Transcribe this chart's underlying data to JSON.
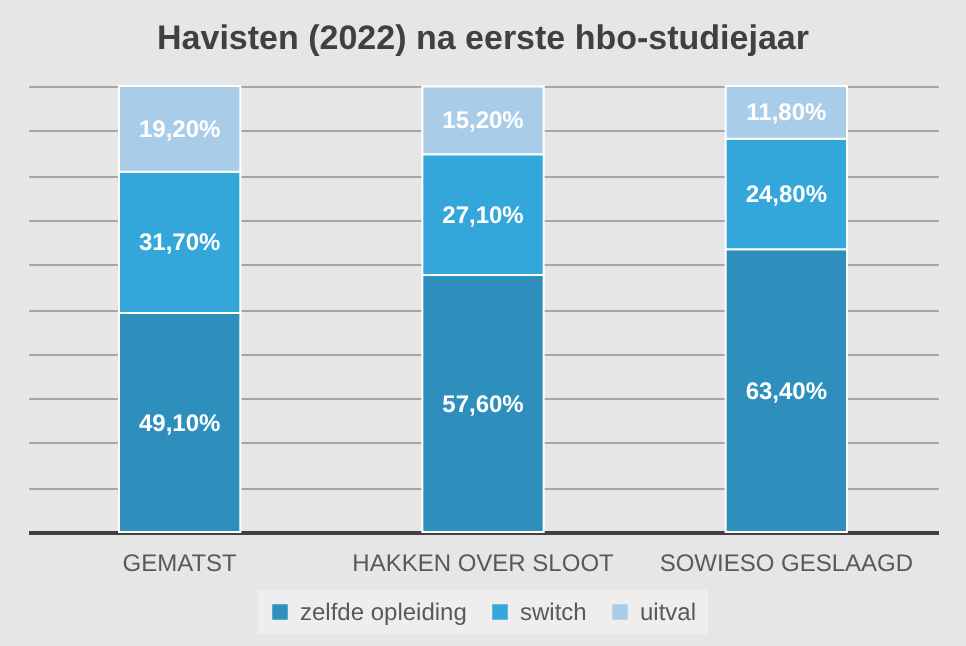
{
  "chart_data": {
    "type": "bar",
    "title": "Havisten (2022) na eerste hbo-studiejaar",
    "categories": [
      "GEMATST",
      "HAKKEN OVER SLOOT",
      "SOWIESO GESLAAGD"
    ],
    "stacked": true,
    "series": [
      {
        "name": "zelfde opleiding",
        "color": "#2e8fbd",
        "values": [
          49.1,
          57.6,
          63.4
        ],
        "value_labels": [
          "49,10%",
          "57,60%",
          "63,40%"
        ]
      },
      {
        "name": "switch",
        "color": "#33a7da",
        "values": [
          31.7,
          27.1,
          24.8
        ],
        "value_labels": [
          "31,70%",
          "27,10%",
          "24,80%"
        ]
      },
      {
        "name": "uitval",
        "color": "#a9cce8",
        "values": [
          19.2,
          15.2,
          11.8
        ],
        "value_labels": [
          "19,20%",
          "15,20%",
          "11,80%"
        ]
      }
    ],
    "ylim": [
      0,
      100
    ],
    "yticks": [
      {
        "value": 0,
        "label": null
      },
      {
        "value": 10,
        "label": null
      },
      {
        "value": 20,
        "label": null
      },
      {
        "value": 30,
        "label": null
      },
      {
        "value": 40,
        "label": null
      },
      {
        "value": 50,
        "label": null
      },
      {
        "value": 60,
        "label": null
      },
      {
        "value": 70,
        "label": null
      },
      {
        "value": 80,
        "label": null
      },
      {
        "value": 90,
        "label": null
      },
      {
        "value": 100,
        "label": null
      }
    ],
    "grid": "y",
    "legend": "bottom",
    "tick_labels": "x"
  }
}
